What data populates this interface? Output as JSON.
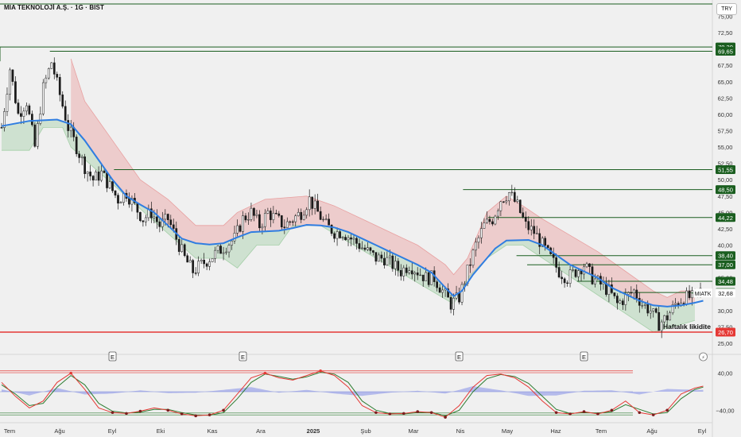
{
  "header": {
    "title": "MIA TEKNOLOJİ A.Ş. · 1G · BIST",
    "currency": "TRY"
  },
  "colors": {
    "background": "#f0f0f0",
    "level_line": "#1b5e20",
    "level_badge": "#1b5e20",
    "liquidity_line": "#e53935",
    "ma_line": "#2f7de1",
    "upper_band_fill": "#e8a0a0",
    "lower_band_fill": "#a5cfa8",
    "candle": "#1a1a1a",
    "osc_fast": "#e53935",
    "osc_slow": "#2e7d32",
    "osc_hist": "#9aa3e8"
  },
  "chart_data": [
    {
      "type": "line",
      "name": "price",
      "x_ticks": [
        "Tem",
        "Ağu",
        "Eyl",
        "Eki",
        "Kas",
        "Ara",
        "2025",
        "Şub",
        "Mar",
        "Nis",
        "May",
        "Haz",
        "Tem",
        "Ağu",
        "Eyl"
      ],
      "y_ticks": [
        "75,00",
        "72,50",
        "67,50",
        "65,00",
        "62,50",
        "60,00",
        "57,50",
        "55,00",
        "52,50",
        "50,00",
        "47,50",
        "45,00",
        "42,50",
        "40,00",
        "35,00",
        "30,00",
        "27,50",
        "25,00"
      ],
      "ylim": [
        25,
        77
      ],
      "last_price": {
        "symbol": "MIATK",
        "value": "32,68"
      },
      "levels": [
        {
          "value": "70,30",
          "start": 0.0
        },
        {
          "value": "69,65",
          "start": 0.07
        },
        {
          "value": "51,55",
          "start": 0.16
        },
        {
          "value": "48,50",
          "start": 0.65
        },
        {
          "value": "44,22",
          "start": 0.685
        },
        {
          "value": "38,40",
          "start": 0.725
        },
        {
          "value": "37,00",
          "start": 0.74
        },
        {
          "value": "34,48",
          "start": 0.81
        },
        {
          "value": "32,76",
          "start": 0.87
        }
      ],
      "liquidity": {
        "label": "Haftalık likidite",
        "value": "26,70"
      },
      "earnings_markers": [
        {
          "label": "E",
          "date_index": 40
        },
        {
          "label": "E",
          "date_index": 87
        },
        {
          "label": "E",
          "date_index": 165
        },
        {
          "label": "E",
          "date_index": 210
        }
      ],
      "alert_marker_index": 253,
      "price_path": [
        [
          0,
          58
        ],
        [
          3,
          67
        ],
        [
          6,
          60
        ],
        [
          9,
          62
        ],
        [
          12,
          55
        ],
        [
          15,
          64
        ],
        [
          18,
          68
        ],
        [
          21,
          63
        ],
        [
          24,
          58
        ],
        [
          27,
          55
        ],
        [
          30,
          52
        ],
        [
          33,
          50
        ],
        [
          36,
          51
        ],
        [
          39,
          49
        ],
        [
          42,
          47
        ],
        [
          45,
          48
        ],
        [
          48,
          46
        ],
        [
          51,
          44
        ],
        [
          54,
          45
        ],
        [
          57,
          43
        ],
        [
          60,
          44
        ],
        [
          63,
          41
        ],
        [
          66,
          38
        ],
        [
          69,
          36
        ],
        [
          72,
          37
        ],
        [
          75,
          38
        ],
        [
          78,
          39
        ],
        [
          81,
          40
        ],
        [
          84,
          41
        ],
        [
          87,
          44
        ],
        [
          90,
          45
        ],
        [
          93,
          43
        ],
        [
          96,
          45
        ],
        [
          99,
          44
        ],
        [
          102,
          43
        ],
        [
          105,
          44
        ],
        [
          108,
          45
        ],
        [
          111,
          47
        ],
        [
          114,
          45
        ],
        [
          117,
          43
        ],
        [
          120,
          42
        ],
        [
          123,
          42
        ],
        [
          126,
          41
        ],
        [
          129,
          40
        ],
        [
          132,
          39
        ],
        [
          135,
          38
        ],
        [
          138,
          38
        ],
        [
          141,
          37
        ],
        [
          144,
          36
        ],
        [
          147,
          37
        ],
        [
          150,
          36
        ],
        [
          153,
          35
        ],
        [
          156,
          35
        ],
        [
          159,
          33
        ],
        [
          162,
          31
        ],
        [
          165,
          32
        ],
        [
          168,
          36
        ],
        [
          171,
          40
        ],
        [
          174,
          43
        ],
        [
          177,
          44
        ],
        [
          180,
          47
        ],
        [
          183,
          48
        ],
        [
          186,
          46
        ],
        [
          189,
          43
        ],
        [
          192,
          42
        ],
        [
          195,
          40
        ],
        [
          198,
          38
        ],
        [
          201,
          36
        ],
        [
          204,
          35
        ],
        [
          207,
          36
        ],
        [
          210,
          37
        ],
        [
          213,
          35
        ],
        [
          216,
          34
        ],
        [
          219,
          33
        ],
        [
          222,
          31
        ],
        [
          225,
          32
        ],
        [
          228,
          33
        ],
        [
          231,
          31
        ],
        [
          234,
          30
        ],
        [
          237,
          28
        ],
        [
          240,
          29
        ],
        [
          243,
          31
        ],
        [
          246,
          32
        ],
        [
          249,
          32
        ],
        [
          252,
          33
        ]
      ],
      "ma_path": [
        [
          0,
          58.2
        ],
        [
          10,
          59.0
        ],
        [
          20,
          59.2
        ],
        [
          25,
          58.5
        ],
        [
          30,
          56
        ],
        [
          35,
          53
        ],
        [
          40,
          50
        ],
        [
          45,
          47.5
        ],
        [
          50,
          46.2
        ],
        [
          55,
          45
        ],
        [
          60,
          43
        ],
        [
          65,
          41
        ],
        [
          70,
          40.3
        ],
        [
          75,
          40.1
        ],
        [
          80,
          40.3
        ],
        [
          85,
          41.2
        ],
        [
          90,
          42
        ],
        [
          100,
          42.2
        ],
        [
          105,
          42.6
        ],
        [
          110,
          43.1
        ],
        [
          115,
          43
        ],
        [
          120,
          42.7
        ],
        [
          125,
          42
        ],
        [
          130,
          41
        ],
        [
          135,
          40
        ],
        [
          140,
          39
        ],
        [
          145,
          38
        ],
        [
          150,
          37
        ],
        [
          155,
          35.8
        ],
        [
          160,
          33.5
        ],
        [
          163,
          32.2
        ],
        [
          166,
          33
        ],
        [
          170,
          35.5
        ],
        [
          174,
          37.5
        ],
        [
          178,
          39.5
        ],
        [
          182,
          40.7
        ],
        [
          190,
          40.8
        ],
        [
          195,
          40
        ],
        [
          200,
          38.5
        ],
        [
          205,
          37
        ],
        [
          210,
          36
        ],
        [
          215,
          35
        ],
        [
          220,
          33.5
        ],
        [
          225,
          32.5
        ],
        [
          230,
          31.5
        ],
        [
          235,
          30.8
        ],
        [
          240,
          30.6
        ],
        [
          245,
          30.8
        ],
        [
          250,
          31.2
        ],
        [
          253,
          31.5
        ]
      ],
      "upper_band": [
        [
          25,
          68.5
        ],
        [
          30,
          62
        ],
        [
          40,
          56
        ],
        [
          50,
          50
        ],
        [
          60,
          47
        ],
        [
          70,
          43
        ],
        [
          80,
          43
        ],
        [
          85,
          45
        ],
        [
          95,
          47
        ],
        [
          110,
          47.5
        ],
        [
          120,
          46
        ],
        [
          130,
          44
        ],
        [
          140,
          42
        ],
        [
          150,
          40
        ],
        [
          160,
          37
        ],
        [
          163,
          35.5
        ],
        [
          168,
          38
        ],
        [
          175,
          45
        ],
        [
          182,
          47.5
        ],
        [
          188,
          46
        ],
        [
          195,
          44
        ],
        [
          205,
          41.5
        ],
        [
          215,
          39
        ],
        [
          225,
          36
        ],
        [
          235,
          33
        ],
        [
          240,
          32
        ],
        [
          245,
          33
        ],
        [
          250,
          33
        ]
      ],
      "lower_band": [
        [
          0,
          54.5
        ],
        [
          10,
          54.5
        ],
        [
          15,
          58
        ],
        [
          22,
          58
        ],
        [
          25,
          55
        ],
        [
          70,
          38
        ],
        [
          80,
          38
        ],
        [
          85,
          36.5
        ],
        [
          92,
          40
        ],
        [
          100,
          40
        ],
        [
          105,
          43
        ],
        [
          115,
          43
        ],
        [
          163,
          31
        ],
        [
          168,
          35
        ],
        [
          175,
          38
        ],
        [
          182,
          40
        ],
        [
          188,
          40
        ],
        [
          235,
          26.7
        ],
        [
          242,
          27.5
        ],
        [
          250,
          28.5
        ]
      ],
      "total_bars": 255
    },
    {
      "type": "line",
      "name": "oscillator",
      "y_ticks": [
        "40,00",
        "−40,00"
      ],
      "ylim": [
        -60,
        60
      ],
      "upper_band_value": 45,
      "lower_band_value": -50,
      "fast": [
        [
          0,
          20
        ],
        [
          5,
          -10
        ],
        [
          10,
          -35
        ],
        [
          15,
          -20
        ],
        [
          20,
          20
        ],
        [
          25,
          40
        ],
        [
          30,
          5
        ],
        [
          35,
          -35
        ],
        [
          40,
          -45
        ],
        [
          45,
          -47
        ],
        [
          50,
          -42
        ],
        [
          55,
          -35
        ],
        [
          60,
          -40
        ],
        [
          65,
          -48
        ],
        [
          70,
          -52
        ],
        [
          75,
          -50
        ],
        [
          80,
          -40
        ],
        [
          85,
          -5
        ],
        [
          90,
          30
        ],
        [
          95,
          40
        ],
        [
          100,
          30
        ],
        [
          105,
          25
        ],
        [
          110,
          35
        ],
        [
          115,
          45
        ],
        [
          120,
          35
        ],
        [
          125,
          10
        ],
        [
          130,
          -30
        ],
        [
          135,
          -45
        ],
        [
          140,
          -48
        ],
        [
          145,
          -47
        ],
        [
          150,
          -43
        ],
        [
          155,
          -45
        ],
        [
          160,
          -55
        ],
        [
          165,
          -30
        ],
        [
          170,
          10
        ],
        [
          175,
          35
        ],
        [
          180,
          38
        ],
        [
          185,
          30
        ],
        [
          190,
          10
        ],
        [
          195,
          -20
        ],
        [
          200,
          -45
        ],
        [
          205,
          -48
        ],
        [
          210,
          -43
        ],
        [
          215,
          -48
        ],
        [
          220,
          -40
        ],
        [
          225,
          -20
        ],
        [
          230,
          -45
        ],
        [
          235,
          -50
        ],
        [
          240,
          -40
        ],
        [
          245,
          -5
        ],
        [
          250,
          8
        ],
        [
          253,
          12
        ]
      ],
      "slow": [
        [
          0,
          15
        ],
        [
          5,
          -5
        ],
        [
          10,
          -30
        ],
        [
          15,
          -25
        ],
        [
          20,
          10
        ],
        [
          25,
          35
        ],
        [
          30,
          15
        ],
        [
          35,
          -25
        ],
        [
          40,
          -42
        ],
        [
          45,
          -46
        ],
        [
          50,
          -44
        ],
        [
          55,
          -38
        ],
        [
          60,
          -38
        ],
        [
          65,
          -45
        ],
        [
          70,
          -50
        ],
        [
          75,
          -51
        ],
        [
          80,
          -45
        ],
        [
          85,
          -15
        ],
        [
          90,
          20
        ],
        [
          95,
          38
        ],
        [
          100,
          33
        ],
        [
          105,
          27
        ],
        [
          110,
          32
        ],
        [
          115,
          42
        ],
        [
          120,
          38
        ],
        [
          125,
          20
        ],
        [
          130,
          -20
        ],
        [
          135,
          -40
        ],
        [
          140,
          -47
        ],
        [
          145,
          -48
        ],
        [
          150,
          -45
        ],
        [
          155,
          -44
        ],
        [
          160,
          -52
        ],
        [
          165,
          -40
        ],
        [
          170,
          0
        ],
        [
          175,
          28
        ],
        [
          180,
          37
        ],
        [
          185,
          33
        ],
        [
          190,
          18
        ],
        [
          195,
          -10
        ],
        [
          200,
          -38
        ],
        [
          205,
          -47
        ],
        [
          210,
          -45
        ],
        [
          215,
          -46
        ],
        [
          220,
          -43
        ],
        [
          225,
          -28
        ],
        [
          230,
          -38
        ],
        [
          235,
          -48
        ],
        [
          240,
          -45
        ],
        [
          245,
          -15
        ],
        [
          250,
          5
        ],
        [
          253,
          10
        ]
      ],
      "hist": [
        [
          0,
          5
        ],
        [
          10,
          -8
        ],
        [
          20,
          8
        ],
        [
          30,
          -6
        ],
        [
          40,
          -4
        ],
        [
          50,
          3
        ],
        [
          60,
          -3
        ],
        [
          70,
          -2
        ],
        [
          80,
          4
        ],
        [
          90,
          10
        ],
        [
          100,
          -2
        ],
        [
          110,
          4
        ],
        [
          120,
          -4
        ],
        [
          130,
          -9
        ],
        [
          140,
          -2
        ],
        [
          150,
          2
        ],
        [
          160,
          -4
        ],
        [
          170,
          12
        ],
        [
          180,
          3
        ],
        [
          190,
          -9
        ],
        [
          200,
          -8
        ],
        [
          210,
          2
        ],
        [
          220,
          3
        ],
        [
          230,
          -6
        ],
        [
          240,
          6
        ],
        [
          250,
          4
        ]
      ]
    }
  ]
}
